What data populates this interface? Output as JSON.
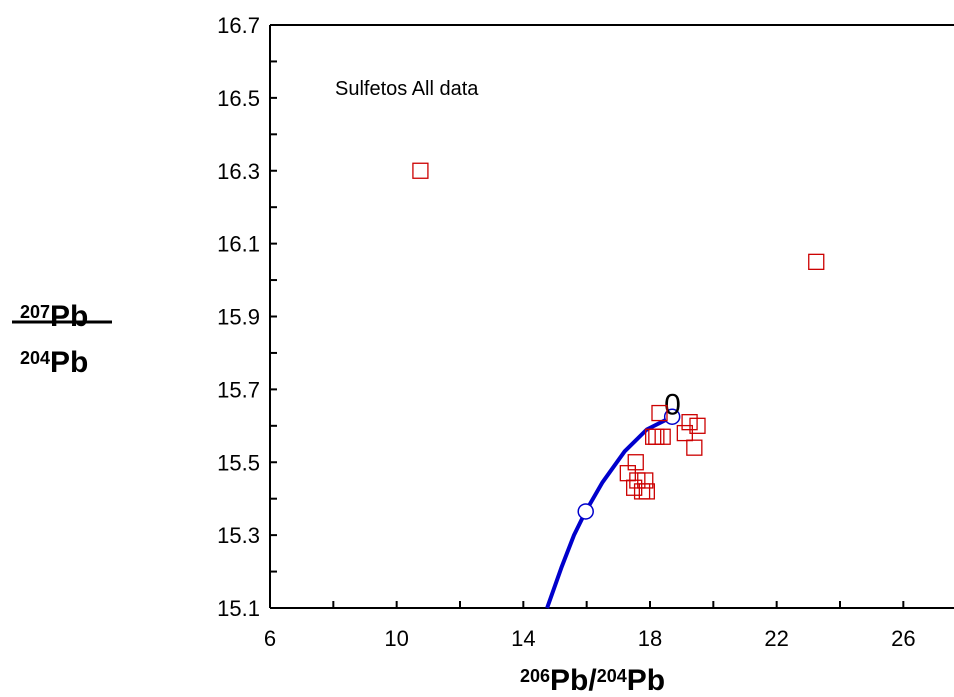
{
  "chart_data": {
    "type": "scatter",
    "annotation": "Sulfetos All data",
    "xlabel": {
      "top_mass": "206",
      "top_elem": "Pb",
      "slash": "/",
      "bottom_mass": "204",
      "bottom_elem": "Pb"
    },
    "ylabel": {
      "top_mass": "207",
      "top_elem": "Pb",
      "bottom_mass": "204",
      "bottom_elem": "Pb"
    },
    "xlim": [
      6,
      27.6
    ],
    "ylim": [
      15.1,
      16.7
    ],
    "xticks": [
      6,
      10,
      14,
      18,
      22,
      26
    ],
    "yticks": [
      15.1,
      15.3,
      15.5,
      15.7,
      15.9,
      16.1,
      16.3,
      16.5,
      16.7
    ],
    "grid": false,
    "series": [
      {
        "marker": "open-square",
        "color": "#cc0000",
        "points": [
          [
            10.75,
            16.3
          ],
          [
            23.25,
            16.05
          ],
          [
            18.3,
            15.635
          ],
          [
            18.1,
            15.57
          ],
          [
            18.2,
            15.57
          ],
          [
            18.4,
            15.57
          ],
          [
            19.1,
            15.58
          ],
          [
            19.25,
            15.61
          ],
          [
            19.5,
            15.6
          ],
          [
            19.4,
            15.54
          ],
          [
            17.3,
            15.47
          ],
          [
            17.55,
            15.5
          ],
          [
            17.6,
            15.45
          ],
          [
            17.5,
            15.43
          ],
          [
            17.85,
            15.45
          ],
          [
            17.75,
            15.42
          ],
          [
            17.9,
            15.42
          ]
        ]
      }
    ],
    "growth_curve": {
      "color": "#0000cc",
      "points": [
        [
          14.75,
          15.1
        ],
        [
          15.2,
          15.21
        ],
        [
          15.6,
          15.3
        ],
        [
          15.97,
          15.365
        ],
        [
          16.5,
          15.445
        ],
        [
          17.2,
          15.53
        ],
        [
          17.9,
          15.59
        ],
        [
          18.7,
          15.625
        ]
      ],
      "markers": [
        [
          15.97,
          15.365
        ],
        [
          18.7,
          15.625
        ]
      ],
      "label": "0"
    }
  }
}
